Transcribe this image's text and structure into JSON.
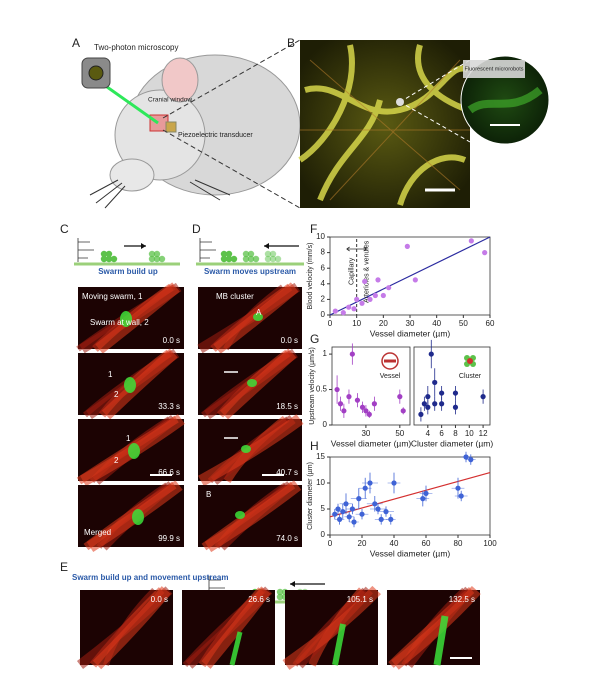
{
  "figure": {
    "panel_labels": [
      "A",
      "B",
      "C",
      "D",
      "E",
      "F",
      "G",
      "H"
    ],
    "panel_a": {
      "labels": [
        "Two-photon microscopy",
        "Cranial window",
        "Piezoelectric transducer"
      ]
    },
    "panel_b": {
      "inset_label": "Fluorescent microrobots"
    },
    "panel_c": {
      "caption": "Swarm build up",
      "frame_labels": [
        [
          "Moving swarm, 1",
          "Swarm at wall, 2"
        ],
        [
          "1",
          "2"
        ],
        [
          "1",
          "2"
        ],
        [
          "Merged"
        ]
      ],
      "times": [
        "0.0 s",
        "33.3 s",
        "66.6 s",
        "99.9 s"
      ]
    },
    "panel_d": {
      "caption": "Swarm moves upstream",
      "frame_labels": [
        [
          "MB cluster",
          "A"
        ],
        [
          "B"
        ]
      ],
      "times": [
        "0.0 s",
        "18.5 s",
        "40.7 s",
        "74.0 s"
      ]
    },
    "panel_e": {
      "caption": "Swarm build up and movement upstream",
      "times": [
        "0.0 s",
        "26.6 s",
        "105.1 s",
        "132.5 s"
      ]
    }
  },
  "chart_data": [
    {
      "type": "scatter",
      "xlabel": "Vessel diameter (µm)",
      "ylabel": "Blood velocity (mm/s)",
      "xlim": [
        0,
        60
      ],
      "xticks": [
        0,
        10,
        20,
        30,
        40,
        50,
        60
      ],
      "ylim": [
        0,
        10
      ],
      "yticks": [
        0,
        2,
        4,
        6,
        8,
        10
      ],
      "series": [
        {
          "color": "#c57be8",
          "x": [
            2,
            5,
            7,
            9,
            10,
            12,
            13,
            15,
            17,
            18,
            20,
            22,
            29,
            32,
            53,
            58
          ],
          "values": [
            0.5,
            0.3,
            1,
            0.8,
            2,
            1.5,
            4.3,
            2,
            2.5,
            4.5,
            2.5,
            3.5,
            8.8,
            4.5,
            9.5,
            8
          ]
        }
      ],
      "trend_line": {
        "color": "#2b2ba0",
        "x": [
          0,
          60
        ],
        "y": [
          0,
          10
        ]
      },
      "divider_x": 10,
      "annotations": [
        "Capillary",
        "Arterioles & venules"
      ]
    },
    {
      "type": "scatter",
      "xlabel": "Vessel diameter (µm)",
      "ylabel": "Upstream velocity (µm/s)",
      "xlim": [
        10,
        56
      ],
      "xticks": [
        30,
        50
      ],
      "ylim": [
        0,
        1.1
      ],
      "yticks": [
        0,
        0.5,
        1
      ],
      "legend_label": "Vessel",
      "series": [
        {
          "color": "#a23fc4",
          "x": [
            13,
            15,
            17,
            20,
            22,
            25,
            28,
            30,
            32,
            35,
            50,
            52
          ],
          "values": [
            0.5,
            0.3,
            0.2,
            0.4,
            1,
            0.35,
            0.25,
            0.2,
            0.15,
            0.3,
            0.4,
            0.2
          ],
          "errors": [
            0.2,
            0.1,
            0.1,
            0.1,
            0.15,
            0.1,
            0.08,
            0.08,
            0.05,
            0.1,
            0.1,
            0.05
          ]
        }
      ]
    },
    {
      "type": "scatter",
      "xlabel": "Cluster diameter (µm)",
      "xlim": [
        2,
        13
      ],
      "xticks": [
        4,
        6,
        8,
        10,
        12
      ],
      "ylim": [
        0,
        1.1
      ],
      "legend_label": "Cluster",
      "series": [
        {
          "color": "#1f2a8c",
          "x": [
            3,
            3.5,
            4,
            4,
            4.5,
            5,
            5,
            6,
            6,
            8,
            8,
            12
          ],
          "values": [
            0.15,
            0.3,
            0.25,
            0.4,
            1,
            0.3,
            0.6,
            0.45,
            0.3,
            0.45,
            0.25,
            0.4
          ],
          "errors": [
            0.1,
            0.1,
            0.1,
            0.15,
            0.2,
            0.1,
            0.2,
            0.1,
            0.1,
            0.1,
            0.1,
            0.1
          ]
        }
      ]
    },
    {
      "type": "scatter",
      "xlabel": "Vessel diameter (µm)",
      "ylabel": "Cluster diameter (µm)",
      "xlim": [
        0,
        100
      ],
      "xticks": [
        0,
        20,
        40,
        60,
        80,
        100
      ],
      "ylim": [
        0,
        15
      ],
      "yticks": [
        0,
        5,
        10,
        15
      ],
      "series": [
        {
          "color": "#3f63d6",
          "x": [
            3,
            5,
            6,
            8,
            10,
            12,
            14,
            15,
            18,
            20,
            22,
            25,
            28,
            30,
            32,
            35,
            38,
            40,
            58,
            60,
            80,
            82,
            85,
            88
          ],
          "values": [
            4,
            5,
            3,
            4.5,
            6,
            3.5,
            5,
            2.5,
            7,
            4,
            9,
            10,
            6,
            5,
            3,
            4.5,
            3,
            10,
            7,
            8,
            9,
            7.5,
            15,
            14.5
          ],
          "errors": [
            1,
            1,
            1,
            1.5,
            2,
            1,
            1,
            1,
            2,
            1,
            2,
            2,
            1.5,
            1,
            1,
            1,
            1,
            2,
            1.5,
            1.5,
            2,
            1,
            1,
            1
          ],
          "x_errors": [
            2,
            2,
            3,
            3,
            4,
            3,
            4,
            3,
            5,
            4,
            4,
            5,
            5,
            5,
            4,
            5,
            3,
            4,
            4,
            4,
            4,
            4,
            3,
            3
          ]
        }
      ],
      "trend_line": {
        "color": "#d43030",
        "x": [
          0,
          100
        ],
        "y": [
          3.5,
          12
        ]
      }
    }
  ]
}
